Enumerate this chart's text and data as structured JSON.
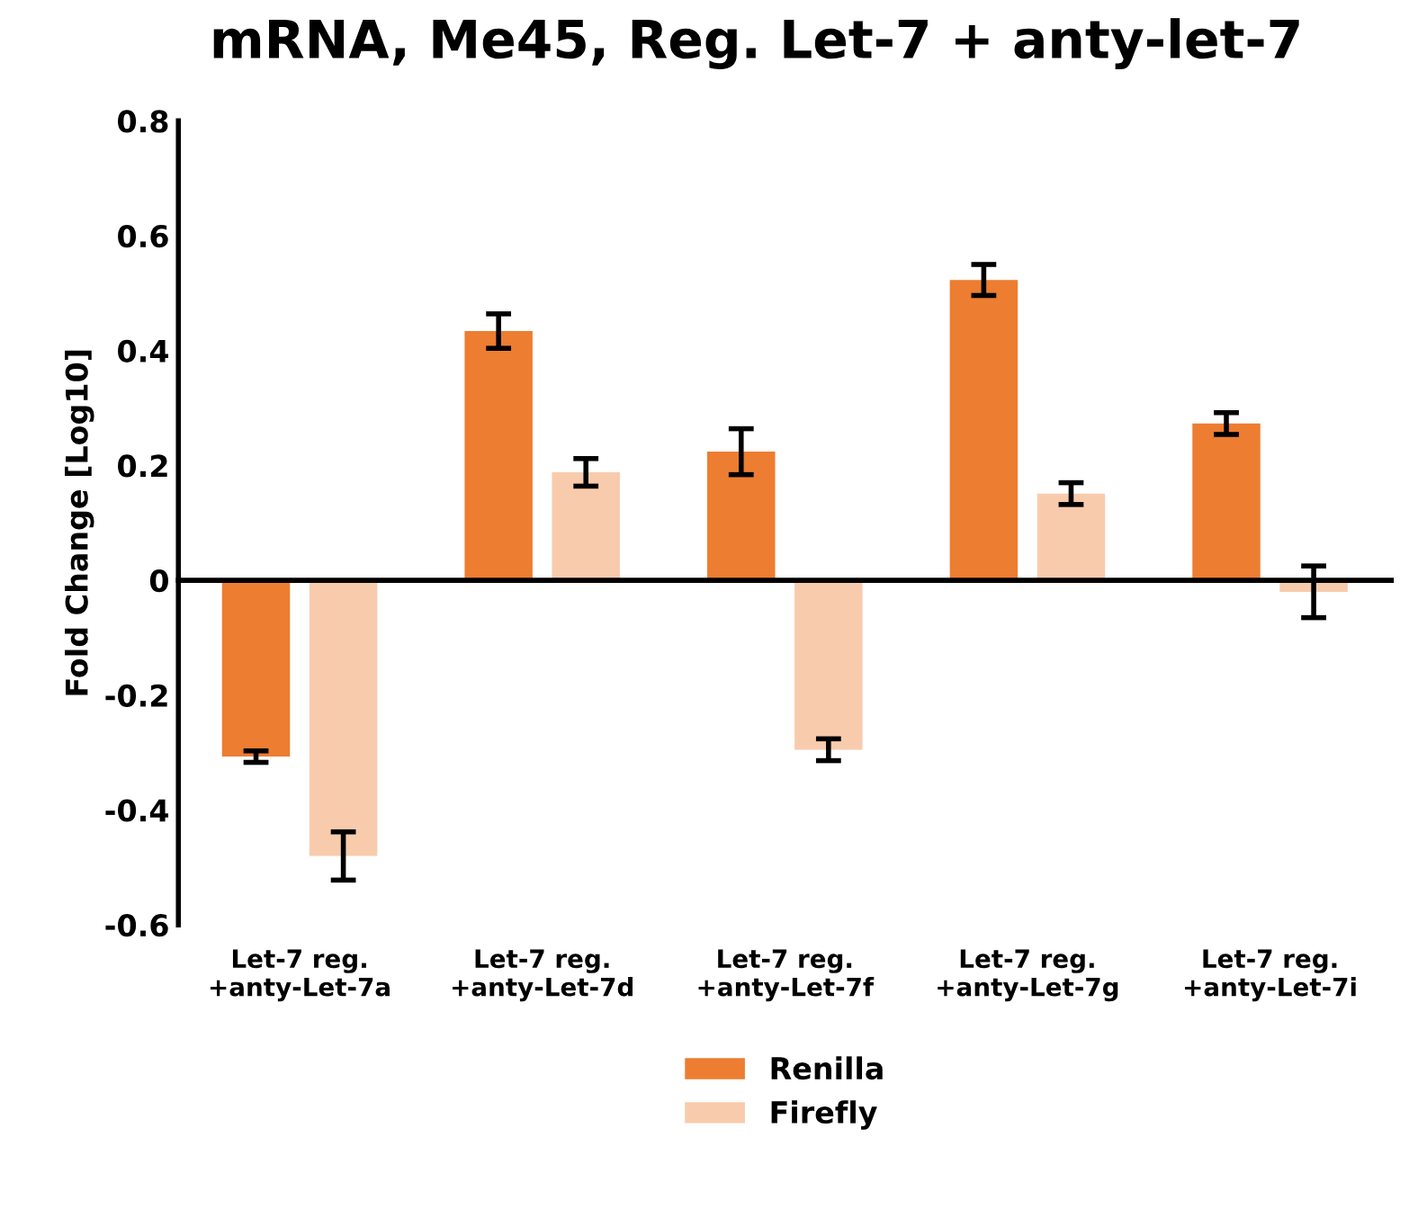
{
  "chart_data": {
    "type": "bar",
    "title": "mRNA, Me45, Reg. Let-7 + anty-let-7",
    "ylabel": "Fold Change [Log10]",
    "categories": [
      "Let-7 reg.\n+anty-Let-7a",
      "Let-7 reg.\n+anty-Let-7d",
      "Let-7 reg.\n+anty-Let-7f",
      "Let-7 reg.\n+anty-Let-7g",
      "Let-7 reg.\n+anty-Let-7i"
    ],
    "series": [
      {
        "name": "Renilla",
        "color": "#ed7d31",
        "values": [
          -0.307,
          0.434,
          0.224,
          0.523,
          0.273
        ],
        "errors": [
          0.01,
          0.03,
          0.04,
          0.027,
          0.019
        ]
      },
      {
        "name": "Firefly",
        "color": "#f8cbad",
        "values": [
          -0.48,
          0.188,
          -0.295,
          0.151,
          -0.02
        ],
        "errors": [
          0.042,
          0.024,
          0.019,
          0.019,
          0.045
        ]
      }
    ],
    "ylim": [
      -0.6,
      0.8
    ],
    "yticks": [
      {
        "value": -0.6,
        "label": "-0.6"
      },
      {
        "value": -0.4,
        "label": "-0.4"
      },
      {
        "value": -0.2,
        "label": "-0.2"
      },
      0,
      0.2,
      0.4,
      0.6,
      0.8
    ],
    "legend": "bottom"
  }
}
